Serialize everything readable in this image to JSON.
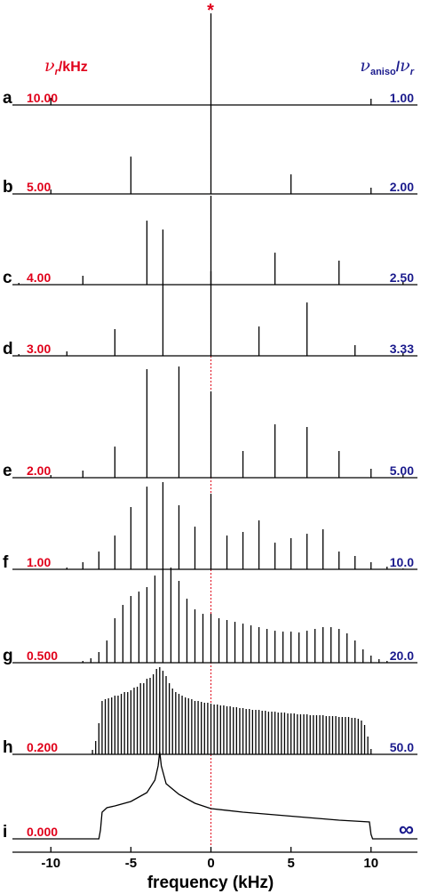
{
  "chart_data": {
    "type": "spectrum",
    "xlabel": "frequency (kHz)",
    "annotation": "*",
    "xlim": [
      -12.4,
      12.9
    ],
    "xticks": [
      -10,
      -5,
      0,
      5,
      10
    ],
    "line_color": "#000000",
    "nu_color": "#e0001a",
    "ratio_color": "#1a1a8c",
    "nu_header": {
      "symbol": "ν",
      "sub": "r",
      "unit": "/kHz"
    },
    "ratio_header": {
      "symbol": "ν",
      "sub": "aniso",
      "sep": "/",
      "symbol2": "ν",
      "sub2": "r"
    },
    "panels": [
      {
        "type": "sticks",
        "letter": "a",
        "nu_r": {
          "value": 10,
          "label": "10.00"
        },
        "ratio": {
          "value": 1,
          "label": "1.00"
        },
        "x": [
          -10,
          0,
          10
        ],
        "values": [
          0.08,
          1.03,
          0.07
        ]
      },
      {
        "type": "sticks",
        "letter": "b",
        "nu_r": {
          "value": 5,
          "label": "5.00"
        },
        "ratio": {
          "value": 2,
          "label": "2.00"
        },
        "x": [
          -10,
          -5,
          0,
          5,
          10
        ],
        "values": [
          0.05,
          0.42,
          1.0,
          0.22,
          0.07
        ]
      },
      {
        "type": "sticks",
        "letter": "c",
        "nu_r": {
          "value": 4,
          "label": "4.00"
        },
        "ratio": {
          "value": 2.5,
          "label": "2.50"
        },
        "x": [
          -12,
          -8,
          -4,
          0,
          4,
          8,
          12
        ],
        "values": [
          0.02,
          0.1,
          0.72,
          1.0,
          0.36,
          0.27,
          0.04
        ]
      },
      {
        "type": "sticks",
        "letter": "d",
        "nu_r": {
          "value": 3,
          "label": "3.00"
        },
        "ratio": {
          "value": 3.33,
          "label": "3.33"
        },
        "x": [
          -12,
          -9,
          -6,
          -3,
          0,
          3,
          6,
          9,
          12
        ],
        "values": [
          0.02,
          0.05,
          0.3,
          1.42,
          0.95,
          0.33,
          0.6,
          0.12,
          0.03
        ]
      },
      {
        "type": "sticks",
        "letter": "e",
        "nu_r": {
          "value": 2,
          "label": "2.00"
        },
        "ratio": {
          "value": 5,
          "label": "5.00"
        },
        "x": [
          -10,
          -8,
          -6,
          -4,
          -2,
          0,
          2,
          4,
          6,
          8,
          10,
          12
        ],
        "values": [
          0.03,
          0.08,
          0.35,
          1.22,
          1.25,
          0.97,
          0.3,
          0.6,
          0.57,
          0.3,
          0.1,
          0.03
        ]
      },
      {
        "type": "sticks",
        "letter": "f",
        "nu_r": {
          "value": 1,
          "label": "1.00"
        },
        "ratio": {
          "value": 10,
          "label": "10.0"
        },
        "x": [
          -9,
          -8,
          -7,
          -6,
          -5,
          -4,
          -3,
          -2,
          -1,
          0,
          1,
          2,
          3,
          4,
          5,
          6,
          7,
          8,
          9,
          10,
          11,
          12
        ],
        "values": [
          0.02,
          0.08,
          0.2,
          0.38,
          0.7,
          0.93,
          0.98,
          0.72,
          0.48,
          0.85,
          0.38,
          0.42,
          0.55,
          0.3,
          0.35,
          0.4,
          0.45,
          0.2,
          0.15,
          0.08,
          0.03,
          0.01
        ]
      },
      {
        "type": "sticks",
        "letter": "g",
        "nu_r": {
          "value": 0.5,
          "label": "0.500"
        },
        "ratio": {
          "value": 20,
          "label": "20.0"
        },
        "x": [
          -8,
          -7.5,
          -7,
          -6.5,
          -6,
          -5.5,
          -5,
          -4.5,
          -4,
          -3.5,
          -3,
          -2.5,
          -2,
          -1.5,
          -1,
          -0.5,
          0,
          0.5,
          1,
          1.5,
          2,
          2.5,
          3,
          3.5,
          4,
          4.5,
          5,
          5.5,
          6,
          6.5,
          7,
          7.5,
          8,
          8.5,
          9,
          9.5,
          10,
          10.5,
          11
        ],
        "values": [
          0.02,
          0.05,
          0.12,
          0.25,
          0.5,
          0.65,
          0.75,
          0.8,
          0.85,
          0.98,
          1.05,
          1.07,
          0.92,
          0.72,
          0.6,
          0.55,
          0.55,
          0.5,
          0.48,
          0.46,
          0.44,
          0.42,
          0.4,
          0.38,
          0.36,
          0.35,
          0.35,
          0.34,
          0.36,
          0.38,
          0.4,
          0.4,
          0.38,
          0.33,
          0.25,
          0.15,
          0.08,
          0.04,
          0.02
        ]
      },
      {
        "type": "sticks",
        "letter": "h",
        "nu_r": {
          "value": 0.2,
          "label": "0.200"
        },
        "ratio": {
          "value": 50,
          "label": "50.0"
        },
        "x": [
          -7.4,
          -7.2,
          -7.0,
          -6.8,
          -6.6,
          -6.4,
          -6.2,
          -6.0,
          -5.8,
          -5.6,
          -5.4,
          -5.2,
          -5.0,
          -4.8,
          -4.6,
          -4.4,
          -4.2,
          -4.0,
          -3.8,
          -3.6,
          -3.4,
          -3.2,
          -3.0,
          -2.8,
          -2.6,
          -2.4,
          -2.2,
          -2.0,
          -1.8,
          -1.6,
          -1.4,
          -1.2,
          -1.0,
          -0.8,
          -0.6,
          -0.4,
          -0.2,
          0,
          0.2,
          0.4,
          0.6,
          0.8,
          1.0,
          1.2,
          1.4,
          1.6,
          1.8,
          2.0,
          2.2,
          2.4,
          2.6,
          2.8,
          3.0,
          3.2,
          3.4,
          3.6,
          3.8,
          4.0,
          4.2,
          4.4,
          4.6,
          4.8,
          5.0,
          5.2,
          5.4,
          5.6,
          5.8,
          6.0,
          6.2,
          6.4,
          6.6,
          6.8,
          7.0,
          7.2,
          7.4,
          7.6,
          7.8,
          8.0,
          8.2,
          8.4,
          8.6,
          8.8,
          9.0,
          9.2,
          9.4,
          9.6,
          9.8,
          10.0
        ],
        "values": [
          0.05,
          0.15,
          0.35,
          0.6,
          0.62,
          0.63,
          0.64,
          0.66,
          0.66,
          0.68,
          0.7,
          0.7,
          0.72,
          0.75,
          0.76,
          0.8,
          0.8,
          0.85,
          0.86,
          0.9,
          0.96,
          0.98,
          0.94,
          0.88,
          0.8,
          0.74,
          0.7,
          0.68,
          0.66,
          0.64,
          0.63,
          0.62,
          0.6,
          0.6,
          0.59,
          0.58,
          0.58,
          0.57,
          0.56,
          0.56,
          0.55,
          0.55,
          0.54,
          0.54,
          0.53,
          0.53,
          0.52,
          0.52,
          0.51,
          0.51,
          0.5,
          0.5,
          0.5,
          0.49,
          0.49,
          0.48,
          0.48,
          0.48,
          0.47,
          0.47,
          0.47,
          0.46,
          0.46,
          0.46,
          0.45,
          0.45,
          0.45,
          0.45,
          0.44,
          0.44,
          0.44,
          0.44,
          0.44,
          0.43,
          0.43,
          0.43,
          0.43,
          0.42,
          0.42,
          0.42,
          0.42,
          0.41,
          0.41,
          0.4,
          0.38,
          0.33,
          0.2,
          0.06
        ]
      },
      {
        "type": "line",
        "letter": "i",
        "nu_r": {
          "value": 0,
          "label": "0.000"
        },
        "ratio": "∞",
        "x": [
          -12.4,
          -7,
          -6.9,
          -6.8,
          -6.5,
          -6,
          -5,
          -4,
          -3.5,
          -3.3,
          -3.2,
          -3.1,
          -2.8,
          -2,
          -1,
          0,
          2,
          4,
          6,
          8,
          9.9,
          10,
          10.1,
          12.9
        ],
        "values": [
          0,
          0,
          0.1,
          0.3,
          0.35,
          0.37,
          0.42,
          0.52,
          0.66,
          0.82,
          0.98,
          0.82,
          0.62,
          0.5,
          0.4,
          0.34,
          0.3,
          0.27,
          0.24,
          0.21,
          0.19,
          0.05,
          0,
          0
        ]
      }
    ]
  }
}
